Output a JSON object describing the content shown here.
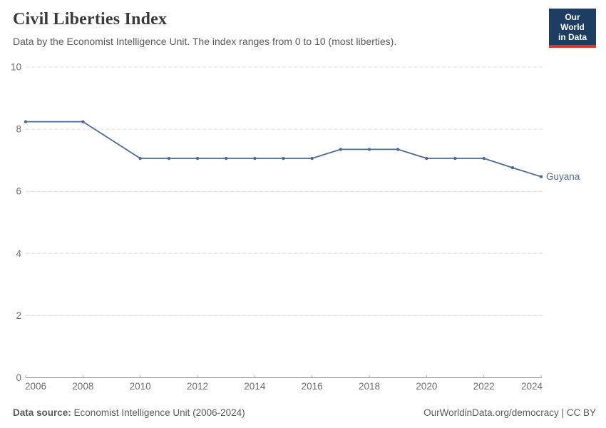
{
  "header": {
    "title": "Civil Liberties Index",
    "subtitle": "Data by the Economist Intelligence Unit. The index ranges from 0 to 10 (most liberties).",
    "logo": {
      "line1": "Our World",
      "line2": "in Data",
      "bg_color": "#1d3d63",
      "stripe_color": "#dc372e",
      "text_color": "#ffffff"
    }
  },
  "chart_data": {
    "type": "line",
    "title": "Civil Liberties Index",
    "subtitle": "Data by the Economist Intelligence Unit. The index ranges from 0 to 10 (most liberties).",
    "xlim": [
      2006,
      2024
    ],
    "ylim": [
      0,
      10
    ],
    "x_ticks": [
      2006,
      2008,
      2010,
      2012,
      2014,
      2016,
      2018,
      2020,
      2022,
      2024
    ],
    "y_ticks": [
      0,
      2,
      4,
      6,
      8,
      10
    ],
    "grid": "horizontal-dashed",
    "legend_position": "end-of-line-label",
    "series": [
      {
        "name": "Guyana",
        "color": "#4c6a9c",
        "points": [
          {
            "x": 2006,
            "y": 8.24
          },
          {
            "x": 2008,
            "y": 8.24
          },
          {
            "x": 2010,
            "y": 7.06
          },
          {
            "x": 2011,
            "y": 7.06
          },
          {
            "x": 2012,
            "y": 7.06
          },
          {
            "x": 2013,
            "y": 7.06
          },
          {
            "x": 2014,
            "y": 7.06
          },
          {
            "x": 2015,
            "y": 7.06
          },
          {
            "x": 2016,
            "y": 7.06
          },
          {
            "x": 2017,
            "y": 7.35
          },
          {
            "x": 2018,
            "y": 7.35
          },
          {
            "x": 2019,
            "y": 7.35
          },
          {
            "x": 2020,
            "y": 7.06
          },
          {
            "x": 2021,
            "y": 7.06
          },
          {
            "x": 2022,
            "y": 7.06
          },
          {
            "x": 2023,
            "y": 6.76
          },
          {
            "x": 2024,
            "y": 6.47
          }
        ]
      }
    ],
    "colors": {
      "line": "#4c6a9c",
      "grid": "#dcdcdc",
      "axis": "#949494",
      "tick": "#b3b3b3",
      "axis_label": "#6e6e6e"
    }
  },
  "footer": {
    "source_label": "Data source:",
    "source_text": "Economist Intelligence Unit (2006-2024)",
    "license_text": "OurWorldinData.org/democracy | CC BY"
  }
}
